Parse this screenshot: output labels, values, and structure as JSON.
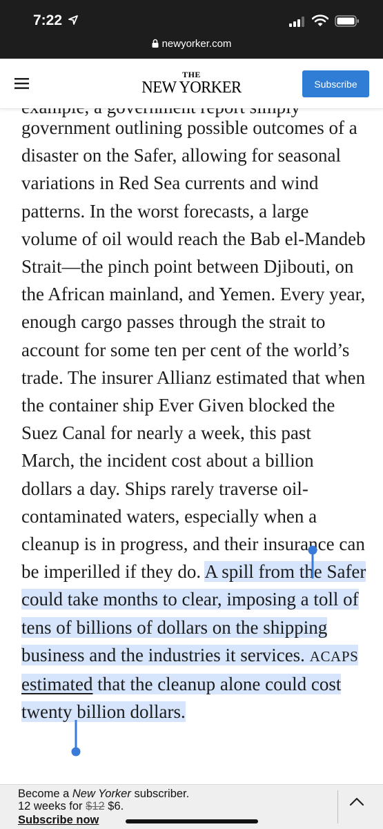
{
  "status_bar": {
    "time": "7:22",
    "url": "newyorker.com",
    "icons": [
      "location-arrow-icon",
      "signal-icon",
      "wifi-icon",
      "battery-icon",
      "lock-icon"
    ]
  },
  "header": {
    "logo_the": "THE",
    "logo_name": "NEW YORKER",
    "subscribe_label": "Subscribe",
    "accent_color": "#2f7dd4"
  },
  "article": {
    "cut_line": "example, a government report simply",
    "text_before_selection": "government outlining possible outcomes of a disaster on the Safer, allowing for seasonal variations in Red Sea currents and wind patterns. In the worst forecasts, a large volume of oil would reach the Bab el-Mandeb Strait—the pinch point between Djibouti, on the African mainland, and Yemen. Every year, enough cargo passes through the strait to account for some ten per cent of the world’s trade. The insurer Allianz estimated that when the container ship Ever Given blocked the Suez Canal for nearly a week, this past March, the incident cost about a billion dollars a day. Ships rarely traverse oil-contaminated waters, especially when a cleanup is in progress, and their insurance can be imperilled if they do.",
    "selected_part1": "A spill from the Safer could take months to clear, imposing a toll of tens of billions of dollars on the shipping business and the industries it services.",
    "acronym": "ACAPS",
    "link_text": "estimated",
    "selected_part2": "that the cleanup alone could cost twenty billion dollars.",
    "selection_color": "#d6e5fb"
  },
  "banner": {
    "line1_prefix": "Become a ",
    "line1_italic": "New Yorker",
    "line1_suffix": " subscriber.",
    "line2_prefix": "12 weeks for ",
    "old_price": "$12",
    "new_price": "$6.",
    "link": "Subscribe now"
  }
}
